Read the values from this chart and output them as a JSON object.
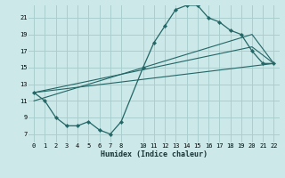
{
  "xlabel": "Humidex (Indice chaleur)",
  "bg_color": "#cce8e8",
  "grid_color": "#aacece",
  "line_color": "#226666",
  "xlim": [
    -0.5,
    22.5
  ],
  "ylim": [
    6.0,
    22.5
  ],
  "xticks": [
    0,
    1,
    2,
    3,
    4,
    5,
    6,
    7,
    8,
    10,
    11,
    12,
    13,
    14,
    15,
    16,
    17,
    18,
    19,
    20,
    21,
    22
  ],
  "yticks": [
    7,
    9,
    11,
    13,
    15,
    17,
    19,
    21
  ],
  "curve_main_x": [
    0,
    1,
    2,
    3,
    4,
    5,
    6,
    7,
    8,
    10,
    11,
    12,
    13,
    14,
    15,
    16,
    17,
    18,
    19,
    20,
    21,
    22
  ],
  "curve_main_y": [
    12.0,
    11.0,
    9.0,
    8.0,
    8.0,
    8.5,
    7.5,
    7.0,
    8.5,
    15.0,
    18.0,
    20.0,
    22.0,
    22.5,
    22.5,
    21.0,
    20.5,
    19.5,
    19.0,
    17.0,
    15.5,
    15.5
  ],
  "line1_x": [
    0,
    22
  ],
  "line1_y": [
    12.0,
    15.5
  ],
  "line2_x": [
    0,
    20,
    22
  ],
  "line2_y": [
    12.0,
    17.5,
    15.5
  ],
  "line3_x": [
    0,
    20,
    22
  ],
  "line3_y": [
    11.0,
    19.0,
    15.5
  ]
}
